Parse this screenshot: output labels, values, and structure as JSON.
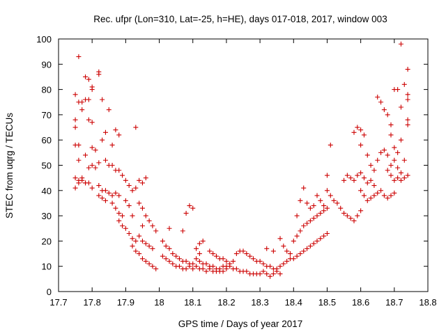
{
  "chart_data": {
    "type": "scatter",
    "title": "Rec. ufpr (Lon=310, Lat=-25, h=HE), days 017-018, 2017, window 003",
    "xlabel": "GPS time / Days of year 2017",
    "ylabel": "STEC from uqrg / TECUs",
    "xlim": [
      17.7,
      18.8
    ],
    "ylim": [
      0,
      100
    ],
    "xticks": [
      "17.7",
      "17.8",
      "17.9",
      "18",
      "18.1",
      "18.2",
      "18.3",
      "18.4",
      "18.5",
      "18.6",
      "18.7",
      "18.8"
    ],
    "yticks": [
      "0",
      "10",
      "20",
      "30",
      "40",
      "50",
      "60",
      "70",
      "80",
      "90",
      "100"
    ],
    "marker": "+",
    "color": "#cc0000",
    "grid": false,
    "series": [
      {
        "values": [
          [
            17.76,
            93
          ],
          [
            17.77,
            75
          ],
          [
            17.78,
            85
          ],
          [
            17.79,
            84
          ],
          [
            17.8,
            81
          ],
          [
            17.82,
            87
          ],
          [
            17.75,
            78
          ],
          [
            17.76,
            75
          ],
          [
            17.77,
            72
          ],
          [
            17.78,
            76
          ],
          [
            17.79,
            76
          ],
          [
            17.8,
            80
          ],
          [
            17.82,
            86
          ],
          [
            17.75,
            68
          ],
          [
            17.75,
            65
          ],
          [
            17.76,
            58
          ],
          [
            17.79,
            68
          ],
          [
            17.8,
            67
          ],
          [
            17.83,
            76
          ],
          [
            17.85,
            72
          ],
          [
            17.75,
            58
          ],
          [
            17.76,
            52
          ],
          [
            17.78,
            54
          ],
          [
            17.8,
            57
          ],
          [
            17.81,
            56
          ],
          [
            17.83,
            60
          ],
          [
            17.84,
            63
          ],
          [
            17.86,
            58
          ],
          [
            17.87,
            64
          ],
          [
            17.88,
            62
          ],
          [
            17.93,
            65
          ],
          [
            17.75,
            45
          ],
          [
            17.76,
            44
          ],
          [
            17.77,
            45
          ],
          [
            17.78,
            43
          ],
          [
            17.79,
            49
          ],
          [
            17.8,
            50
          ],
          [
            17.81,
            49
          ],
          [
            17.82,
            51
          ],
          [
            17.84,
            52
          ],
          [
            17.85,
            50
          ],
          [
            17.86,
            50
          ],
          [
            17.87,
            48
          ],
          [
            17.88,
            48
          ],
          [
            17.75,
            41
          ],
          [
            17.76,
            43
          ],
          [
            17.77,
            44
          ],
          [
            17.78,
            43
          ],
          [
            17.79,
            43
          ],
          [
            17.8,
            41
          ],
          [
            17.82,
            42
          ],
          [
            17.83,
            40
          ],
          [
            17.84,
            40
          ],
          [
            17.85,
            39
          ],
          [
            17.86,
            38
          ],
          [
            17.87,
            39
          ],
          [
            17.88,
            38
          ],
          [
            17.82,
            38
          ],
          [
            17.83,
            37
          ],
          [
            17.84,
            36
          ],
          [
            17.86,
            35
          ],
          [
            17.87,
            33
          ],
          [
            17.88,
            31
          ],
          [
            17.89,
            30
          ],
          [
            17.89,
            46
          ],
          [
            17.9,
            44
          ],
          [
            17.91,
            42
          ],
          [
            17.92,
            40
          ],
          [
            17.93,
            41
          ],
          [
            17.94,
            44
          ],
          [
            17.95,
            43
          ],
          [
            17.96,
            45
          ],
          [
            17.88,
            28
          ],
          [
            17.89,
            26
          ],
          [
            17.9,
            25
          ],
          [
            17.91,
            23
          ],
          [
            17.92,
            21
          ],
          [
            17.93,
            20
          ],
          [
            17.94,
            22
          ],
          [
            17.95,
            20
          ],
          [
            17.96,
            19
          ],
          [
            17.97,
            18
          ],
          [
            17.98,
            17
          ],
          [
            17.92,
            18
          ],
          [
            17.93,
            16
          ],
          [
            17.94,
            15
          ],
          [
            17.95,
            13
          ],
          [
            17.96,
            12
          ],
          [
            17.97,
            11
          ],
          [
            17.98,
            10
          ],
          [
            17.99,
            9
          ],
          [
            17.94,
            35
          ],
          [
            17.95,
            33
          ],
          [
            17.96,
            30
          ],
          [
            17.97,
            28
          ],
          [
            17.98,
            26
          ],
          [
            17.99,
            24
          ],
          [
            17.9,
            36
          ],
          [
            17.91,
            34
          ],
          [
            17.92,
            30
          ],
          [
            17.95,
            26
          ],
          [
            18.01,
            14
          ],
          [
            18.02,
            13
          ],
          [
            18.03,
            12
          ],
          [
            18.04,
            11
          ],
          [
            18.05,
            10
          ],
          [
            18.06,
            10
          ],
          [
            18.07,
            9
          ],
          [
            18.08,
            9
          ],
          [
            18.09,
            10
          ],
          [
            18.1,
            9
          ],
          [
            18.01,
            20
          ],
          [
            18.02,
            18
          ],
          [
            18.03,
            17
          ],
          [
            18.04,
            15
          ],
          [
            18.05,
            14
          ],
          [
            18.06,
            13
          ],
          [
            18.07,
            12
          ],
          [
            18.08,
            12
          ],
          [
            18.09,
            11
          ],
          [
            18.1,
            11
          ],
          [
            18.03,
            25
          ],
          [
            18.07,
            24
          ],
          [
            18.08,
            31
          ],
          [
            18.09,
            34
          ],
          [
            18.1,
            33
          ],
          [
            18.12,
            19
          ],
          [
            18.13,
            20
          ],
          [
            18.11,
            17
          ],
          [
            18.12,
            15
          ],
          [
            18.11,
            13
          ],
          [
            18.12,
            12
          ],
          [
            18.13,
            11
          ],
          [
            18.14,
            11
          ],
          [
            18.15,
            10
          ],
          [
            18.16,
            10
          ],
          [
            18.17,
            9
          ],
          [
            18.18,
            9
          ],
          [
            18.19,
            10
          ],
          [
            18.2,
            10
          ],
          [
            18.11,
            10
          ],
          [
            18.12,
            9
          ],
          [
            18.13,
            9
          ],
          [
            18.14,
            8
          ],
          [
            18.15,
            9
          ],
          [
            18.16,
            8
          ],
          [
            18.17,
            8
          ],
          [
            18.18,
            8
          ],
          [
            18.19,
            8
          ],
          [
            18.2,
            9
          ],
          [
            18.15,
            16
          ],
          [
            18.16,
            15
          ],
          [
            18.17,
            14
          ],
          [
            18.18,
            13
          ],
          [
            18.19,
            13
          ],
          [
            18.2,
            12
          ],
          [
            18.21,
            11
          ],
          [
            18.22,
            12
          ],
          [
            18.23,
            15
          ],
          [
            18.24,
            16
          ],
          [
            18.25,
            16
          ],
          [
            18.21,
            10
          ],
          [
            18.22,
            9
          ],
          [
            18.23,
            9
          ],
          [
            18.24,
            8
          ],
          [
            18.25,
            8
          ],
          [
            18.26,
            8
          ],
          [
            18.27,
            7
          ],
          [
            18.28,
            7
          ],
          [
            18.29,
            7
          ],
          [
            18.3,
            7
          ],
          [
            18.26,
            15
          ],
          [
            18.27,
            14
          ],
          [
            18.28,
            13
          ],
          [
            18.29,
            12
          ],
          [
            18.3,
            12
          ],
          [
            18.31,
            11
          ],
          [
            18.32,
            10
          ],
          [
            18.33,
            10
          ],
          [
            18.34,
            9
          ],
          [
            18.35,
            9
          ],
          [
            18.31,
            8
          ],
          [
            18.32,
            7
          ],
          [
            18.33,
            6
          ],
          [
            18.34,
            7
          ],
          [
            18.35,
            8
          ],
          [
            18.36,
            7
          ],
          [
            18.32,
            17
          ],
          [
            18.34,
            16
          ],
          [
            18.36,
            21
          ],
          [
            18.37,
            18
          ],
          [
            18.38,
            16
          ],
          [
            18.39,
            15
          ],
          [
            18.36,
            10
          ],
          [
            18.37,
            11
          ],
          [
            18.38,
            12
          ],
          [
            18.39,
            13
          ],
          [
            18.4,
            13
          ],
          [
            18.41,
            14
          ],
          [
            18.42,
            15
          ],
          [
            18.43,
            16
          ],
          [
            18.44,
            17
          ],
          [
            18.45,
            18
          ],
          [
            18.46,
            19
          ],
          [
            18.47,
            20
          ],
          [
            18.48,
            21
          ],
          [
            18.49,
            22
          ],
          [
            18.5,
            23
          ],
          [
            18.4,
            20
          ],
          [
            18.41,
            22
          ],
          [
            18.42,
            24
          ],
          [
            18.43,
            26
          ],
          [
            18.44,
            27
          ],
          [
            18.45,
            28
          ],
          [
            18.46,
            29
          ],
          [
            18.47,
            30
          ],
          [
            18.48,
            31
          ],
          [
            18.49,
            32
          ],
          [
            18.5,
            33
          ],
          [
            18.41,
            30
          ],
          [
            18.42,
            36
          ],
          [
            18.43,
            41
          ],
          [
            18.44,
            35
          ],
          [
            18.45,
            33
          ],
          [
            18.46,
            34
          ],
          [
            18.47,
            38
          ],
          [
            18.48,
            36
          ],
          [
            18.49,
            34
          ],
          [
            18.5,
            40
          ],
          [
            18.51,
            38
          ],
          [
            18.52,
            36
          ],
          [
            18.53,
            35
          ],
          [
            18.54,
            33
          ],
          [
            18.55,
            31
          ],
          [
            18.56,
            30
          ],
          [
            18.57,
            29
          ],
          [
            18.58,
            28
          ],
          [
            18.59,
            30
          ],
          [
            18.6,
            32
          ],
          [
            18.5,
            46
          ],
          [
            18.51,
            58
          ],
          [
            18.55,
            44
          ],
          [
            18.56,
            46
          ],
          [
            18.57,
            45
          ],
          [
            18.58,
            44
          ],
          [
            18.59,
            46
          ],
          [
            18.6,
            47
          ],
          [
            18.61,
            45
          ],
          [
            18.62,
            43
          ],
          [
            18.63,
            44
          ],
          [
            18.64,
            42
          ],
          [
            18.58,
            63
          ],
          [
            18.59,
            65
          ],
          [
            18.6,
            64
          ],
          [
            18.61,
            62
          ],
          [
            18.62,
            54
          ],
          [
            18.6,
            58
          ],
          [
            18.63,
            50
          ],
          [
            18.64,
            48
          ],
          [
            18.65,
            52
          ],
          [
            18.66,
            55
          ],
          [
            18.67,
            56
          ],
          [
            18.68,
            54
          ],
          [
            18.6,
            40
          ],
          [
            18.61,
            38
          ],
          [
            18.62,
            36
          ],
          [
            18.63,
            37
          ],
          [
            18.64,
            38
          ],
          [
            18.65,
            39
          ],
          [
            18.66,
            40
          ],
          [
            18.67,
            38
          ],
          [
            18.68,
            37
          ],
          [
            18.69,
            38
          ],
          [
            18.7,
            39
          ],
          [
            18.65,
            77
          ],
          [
            18.66,
            75
          ],
          [
            18.67,
            72
          ],
          [
            18.68,
            70
          ],
          [
            18.69,
            66
          ],
          [
            18.7,
            80
          ],
          [
            18.71,
            80
          ],
          [
            18.72,
            73
          ],
          [
            18.72,
            98
          ],
          [
            18.73,
            82
          ],
          [
            18.74,
            88
          ],
          [
            18.69,
            62
          ],
          [
            18.7,
            57
          ],
          [
            18.71,
            55
          ],
          [
            18.72,
            60
          ],
          [
            18.73,
            52
          ],
          [
            18.74,
            46
          ],
          [
            18.74,
            66
          ],
          [
            18.74,
            68
          ],
          [
            18.74,
            76
          ],
          [
            18.74,
            78
          ],
          [
            18.69,
            46
          ],
          [
            18.7,
            44
          ],
          [
            18.71,
            45
          ],
          [
            18.72,
            44
          ],
          [
            18.73,
            45
          ],
          [
            18.68,
            48
          ],
          [
            18.69,
            50
          ],
          [
            18.7,
            52
          ],
          [
            18.71,
            49
          ],
          [
            18.72,
            47
          ]
        ]
      }
    ]
  }
}
